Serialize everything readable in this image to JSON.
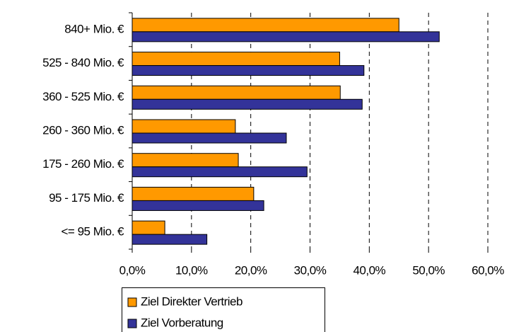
{
  "chart_data": {
    "type": "bar",
    "orientation": "horizontal",
    "categories": [
      "840+ Mio. €",
      "525 - 840 Mio. €",
      "360 - 525 Mio. €",
      "260 - 360 Mio. €",
      "175 - 260 Mio. €",
      "95 - 175 Mio. €",
      "<= 95 Mio. €"
    ],
    "series": [
      {
        "name": "Ziel Direkter Vertrieb",
        "color": "#ff9900",
        "values": [
          45.0,
          35.0,
          35.1,
          17.4,
          17.9,
          20.5,
          5.5
        ]
      },
      {
        "name": "Ziel Vorberatung",
        "color": "#333399",
        "values": [
          51.8,
          39.1,
          38.8,
          26.0,
          29.5,
          22.2,
          12.6
        ]
      }
    ],
    "xlim": [
      0,
      60
    ],
    "xticks": [
      {
        "value": 0,
        "label": "0,0%"
      },
      {
        "value": 10,
        "label": "10,0%"
      },
      {
        "value": 20,
        "label": "20,0%"
      },
      {
        "value": 30,
        "label": "30,0%"
      },
      {
        "value": 40,
        "label": "40,0%"
      },
      {
        "value": 50,
        "label": "50,0%"
      },
      {
        "value": 60,
        "label": "60,0%"
      }
    ],
    "grid": true,
    "legend": "bottom"
  }
}
